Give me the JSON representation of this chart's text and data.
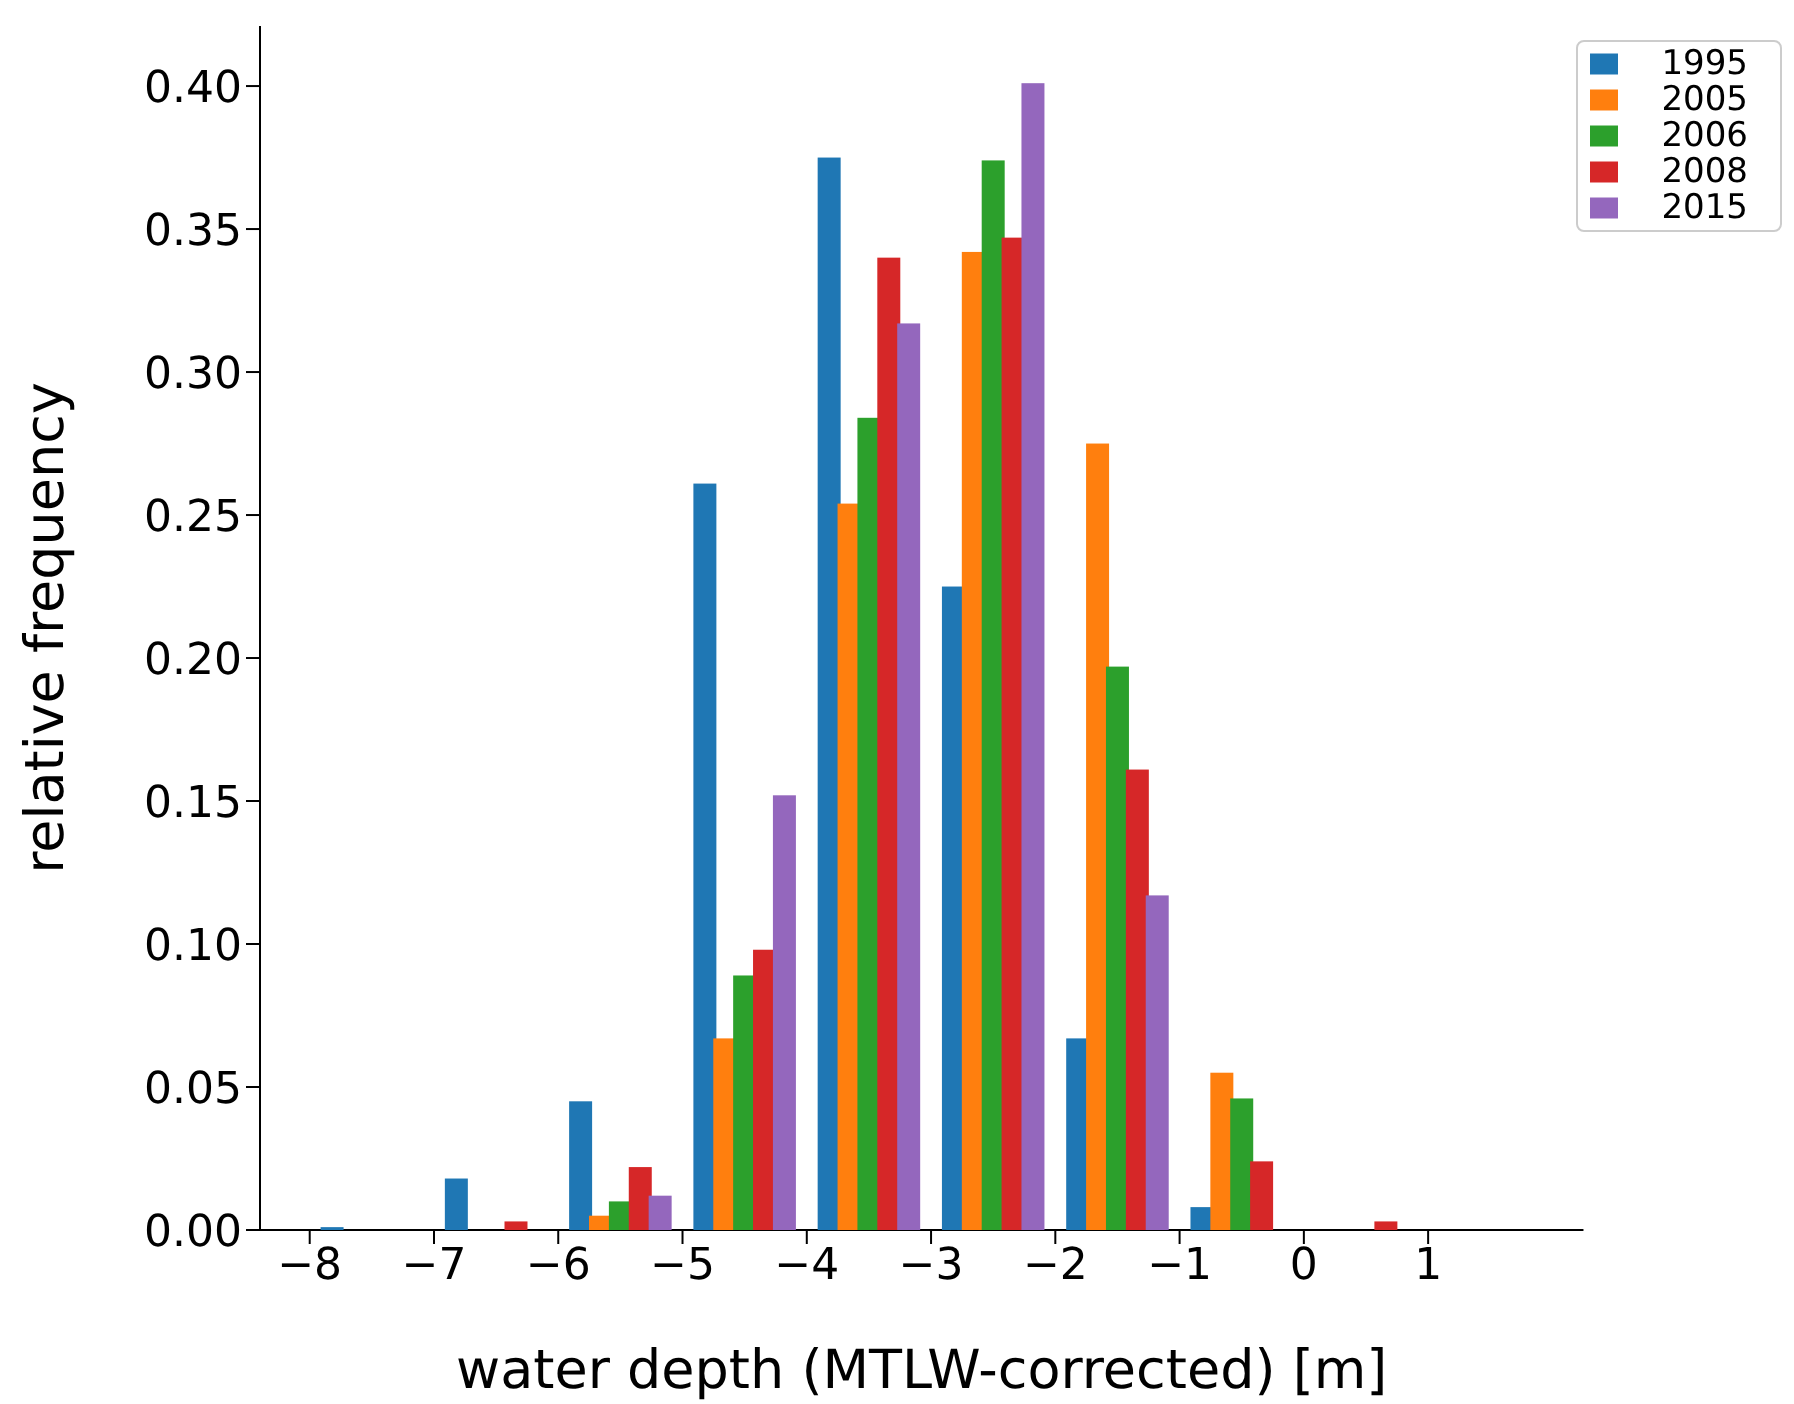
{
  "chart_data": {
    "type": "histogram",
    "xlabel": "water depth (MTLW-corrected) [m]",
    "ylabel": "relative frequency",
    "bins": [
      -8,
      -7,
      -6,
      -5,
      -4,
      -3,
      -2,
      -1,
      0,
      1,
      2
    ],
    "series": [
      {
        "name": "1995",
        "color": "#1f77b4",
        "values": [
          0.001,
          0.018,
          0.045,
          0.261,
          0.375,
          0.225,
          0.067,
          0.008,
          0,
          0
        ]
      },
      {
        "name": "2005",
        "color": "#ff7f0e",
        "values": [
          0,
          0,
          0.005,
          0.067,
          0.254,
          0.342,
          0.275,
          0.055,
          0,
          0
        ]
      },
      {
        "name": "2006",
        "color": "#2ca02c",
        "values": [
          0,
          0,
          0.01,
          0.089,
          0.284,
          0.374,
          0.197,
          0.046,
          0,
          0
        ]
      },
      {
        "name": "2008",
        "color": "#d62728",
        "values": [
          0,
          0.003,
          0.022,
          0.098,
          0.34,
          0.347,
          0.161,
          0.024,
          0.003,
          0
        ]
      },
      {
        "name": "2015",
        "color": "#9467bd",
        "values": [
          0,
          0,
          0.012,
          0.152,
          0.317,
          0.401,
          0.117,
          0,
          0,
          0
        ]
      }
    ],
    "xlim": [
      -8.4,
      2.25
    ],
    "ylim": [
      0,
      0.421
    ],
    "xticks": [
      -8,
      -7,
      -6,
      -5,
      -4,
      -3,
      -2,
      -1,
      0,
      1
    ],
    "yticks": [
      {
        "value": 0,
        "label": "0.00"
      },
      {
        "value": 0.05,
        "label": "0.05"
      },
      {
        "value": 0.1,
        "label": "0.10"
      },
      {
        "value": 0.15,
        "label": "0.15"
      },
      {
        "value": 0.2,
        "label": "0.20"
      },
      {
        "value": 0.25,
        "label": "0.25"
      },
      {
        "value": 0.3,
        "label": "0.30"
      },
      {
        "value": 0.35,
        "label": "0.35"
      },
      {
        "value": 0.4,
        "label": "0.40"
      }
    ],
    "legend": "top right",
    "grid": false
  }
}
